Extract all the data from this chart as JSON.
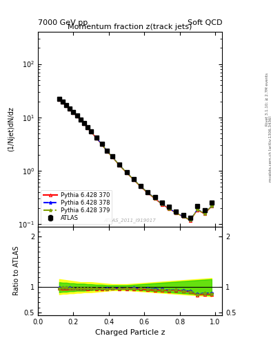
{
  "title": "Momentum fraction z(track jets)",
  "top_left_label": "7000 GeV pp",
  "top_right_label": "Soft QCD",
  "ylabel_main": "(1/Njet)dN/dz",
  "ylabel_ratio": "Ratio to ATLAS",
  "xlabel": "Charged Particle z",
  "watermark": "ATLAS_2011_I919017",
  "right_label1": "Rivet 3.1.10; ≥ 2.7M events",
  "right_label2": "mcplots.cern.ch [arXiv:1306.3436]",
  "z_values": [
    0.12,
    0.14,
    0.16,
    0.18,
    0.2,
    0.22,
    0.24,
    0.26,
    0.28,
    0.3,
    0.33,
    0.36,
    0.39,
    0.42,
    0.46,
    0.5,
    0.54,
    0.58,
    0.62,
    0.66,
    0.7,
    0.74,
    0.78,
    0.82,
    0.86,
    0.9,
    0.94,
    0.98
  ],
  "atlas_values": [
    22.0,
    19.5,
    17.0,
    14.5,
    12.5,
    10.8,
    9.2,
    7.8,
    6.6,
    5.5,
    4.2,
    3.2,
    2.4,
    1.85,
    1.3,
    0.95,
    0.7,
    0.52,
    0.4,
    0.32,
    0.25,
    0.21,
    0.17,
    0.15,
    0.13,
    0.22,
    0.18,
    0.25
  ],
  "atlas_errors": [
    0.5,
    0.4,
    0.4,
    0.35,
    0.3,
    0.25,
    0.22,
    0.18,
    0.15,
    0.13,
    0.1,
    0.08,
    0.06,
    0.05,
    0.04,
    0.03,
    0.02,
    0.015,
    0.012,
    0.01,
    0.008,
    0.007,
    0.006,
    0.005,
    0.005,
    0.01,
    0.01,
    0.01
  ],
  "py370_values": [
    21.5,
    19.2,
    16.7,
    14.2,
    12.2,
    10.5,
    9.0,
    7.6,
    6.4,
    5.35,
    4.08,
    3.1,
    2.32,
    1.8,
    1.26,
    0.92,
    0.68,
    0.5,
    0.38,
    0.3,
    0.235,
    0.195,
    0.16,
    0.138,
    0.118,
    0.185,
    0.155,
    0.215
  ],
  "py378_values": [
    21.8,
    19.4,
    16.9,
    14.3,
    12.3,
    10.6,
    9.05,
    7.65,
    6.45,
    5.4,
    4.12,
    3.14,
    2.35,
    1.82,
    1.28,
    0.935,
    0.69,
    0.51,
    0.39,
    0.308,
    0.24,
    0.198,
    0.162,
    0.14,
    0.12,
    0.19,
    0.16,
    0.22
  ],
  "py379_values": [
    21.6,
    19.3,
    16.8,
    14.25,
    12.25,
    10.55,
    9.02,
    7.62,
    6.42,
    5.38,
    4.1,
    3.12,
    2.33,
    1.81,
    1.27,
    0.93,
    0.685,
    0.508,
    0.388,
    0.305,
    0.238,
    0.196,
    0.161,
    0.139,
    0.119,
    0.188,
    0.158,
    0.218
  ],
  "band_yellow_lower": [
    0.86,
    0.87,
    0.87,
    0.88,
    0.88,
    0.89,
    0.89,
    0.9,
    0.9,
    0.9,
    0.91,
    0.92,
    0.93,
    0.94,
    0.94,
    0.94,
    0.93,
    0.92,
    0.91,
    0.9,
    0.89,
    0.88,
    0.87,
    0.86,
    0.85,
    0.84,
    0.83,
    0.82
  ],
  "band_yellow_upper": [
    1.16,
    1.15,
    1.14,
    1.13,
    1.12,
    1.11,
    1.1,
    1.1,
    1.1,
    1.1,
    1.09,
    1.08,
    1.07,
    1.06,
    1.06,
    1.06,
    1.07,
    1.08,
    1.09,
    1.1,
    1.11,
    1.12,
    1.13,
    1.14,
    1.15,
    1.16,
    1.17,
    1.18
  ],
  "band_green_lower": [
    0.9,
    0.91,
    0.91,
    0.92,
    0.92,
    0.93,
    0.93,
    0.93,
    0.94,
    0.94,
    0.95,
    0.95,
    0.96,
    0.96,
    0.96,
    0.96,
    0.95,
    0.94,
    0.93,
    0.92,
    0.91,
    0.9,
    0.89,
    0.88,
    0.87,
    0.86,
    0.85,
    0.84
  ],
  "band_green_upper": [
    1.1,
    1.09,
    1.09,
    1.08,
    1.08,
    1.07,
    1.07,
    1.07,
    1.06,
    1.06,
    1.05,
    1.05,
    1.04,
    1.04,
    1.04,
    1.04,
    1.05,
    1.06,
    1.07,
    1.08,
    1.09,
    1.1,
    1.11,
    1.12,
    1.13,
    1.14,
    1.15,
    1.16
  ],
  "color_atlas": "#000000",
  "color_py370": "#ff0000",
  "color_py378": "#0000ff",
  "color_py379": "#80a000",
  "color_band_yellow": "#ffff00",
  "color_band_green": "#00cc00",
  "ylim_main": [
    0.09,
    400
  ],
  "ylim_ratio": [
    0.45,
    2.2
  ],
  "xlim": [
    0.0,
    1.04
  ]
}
